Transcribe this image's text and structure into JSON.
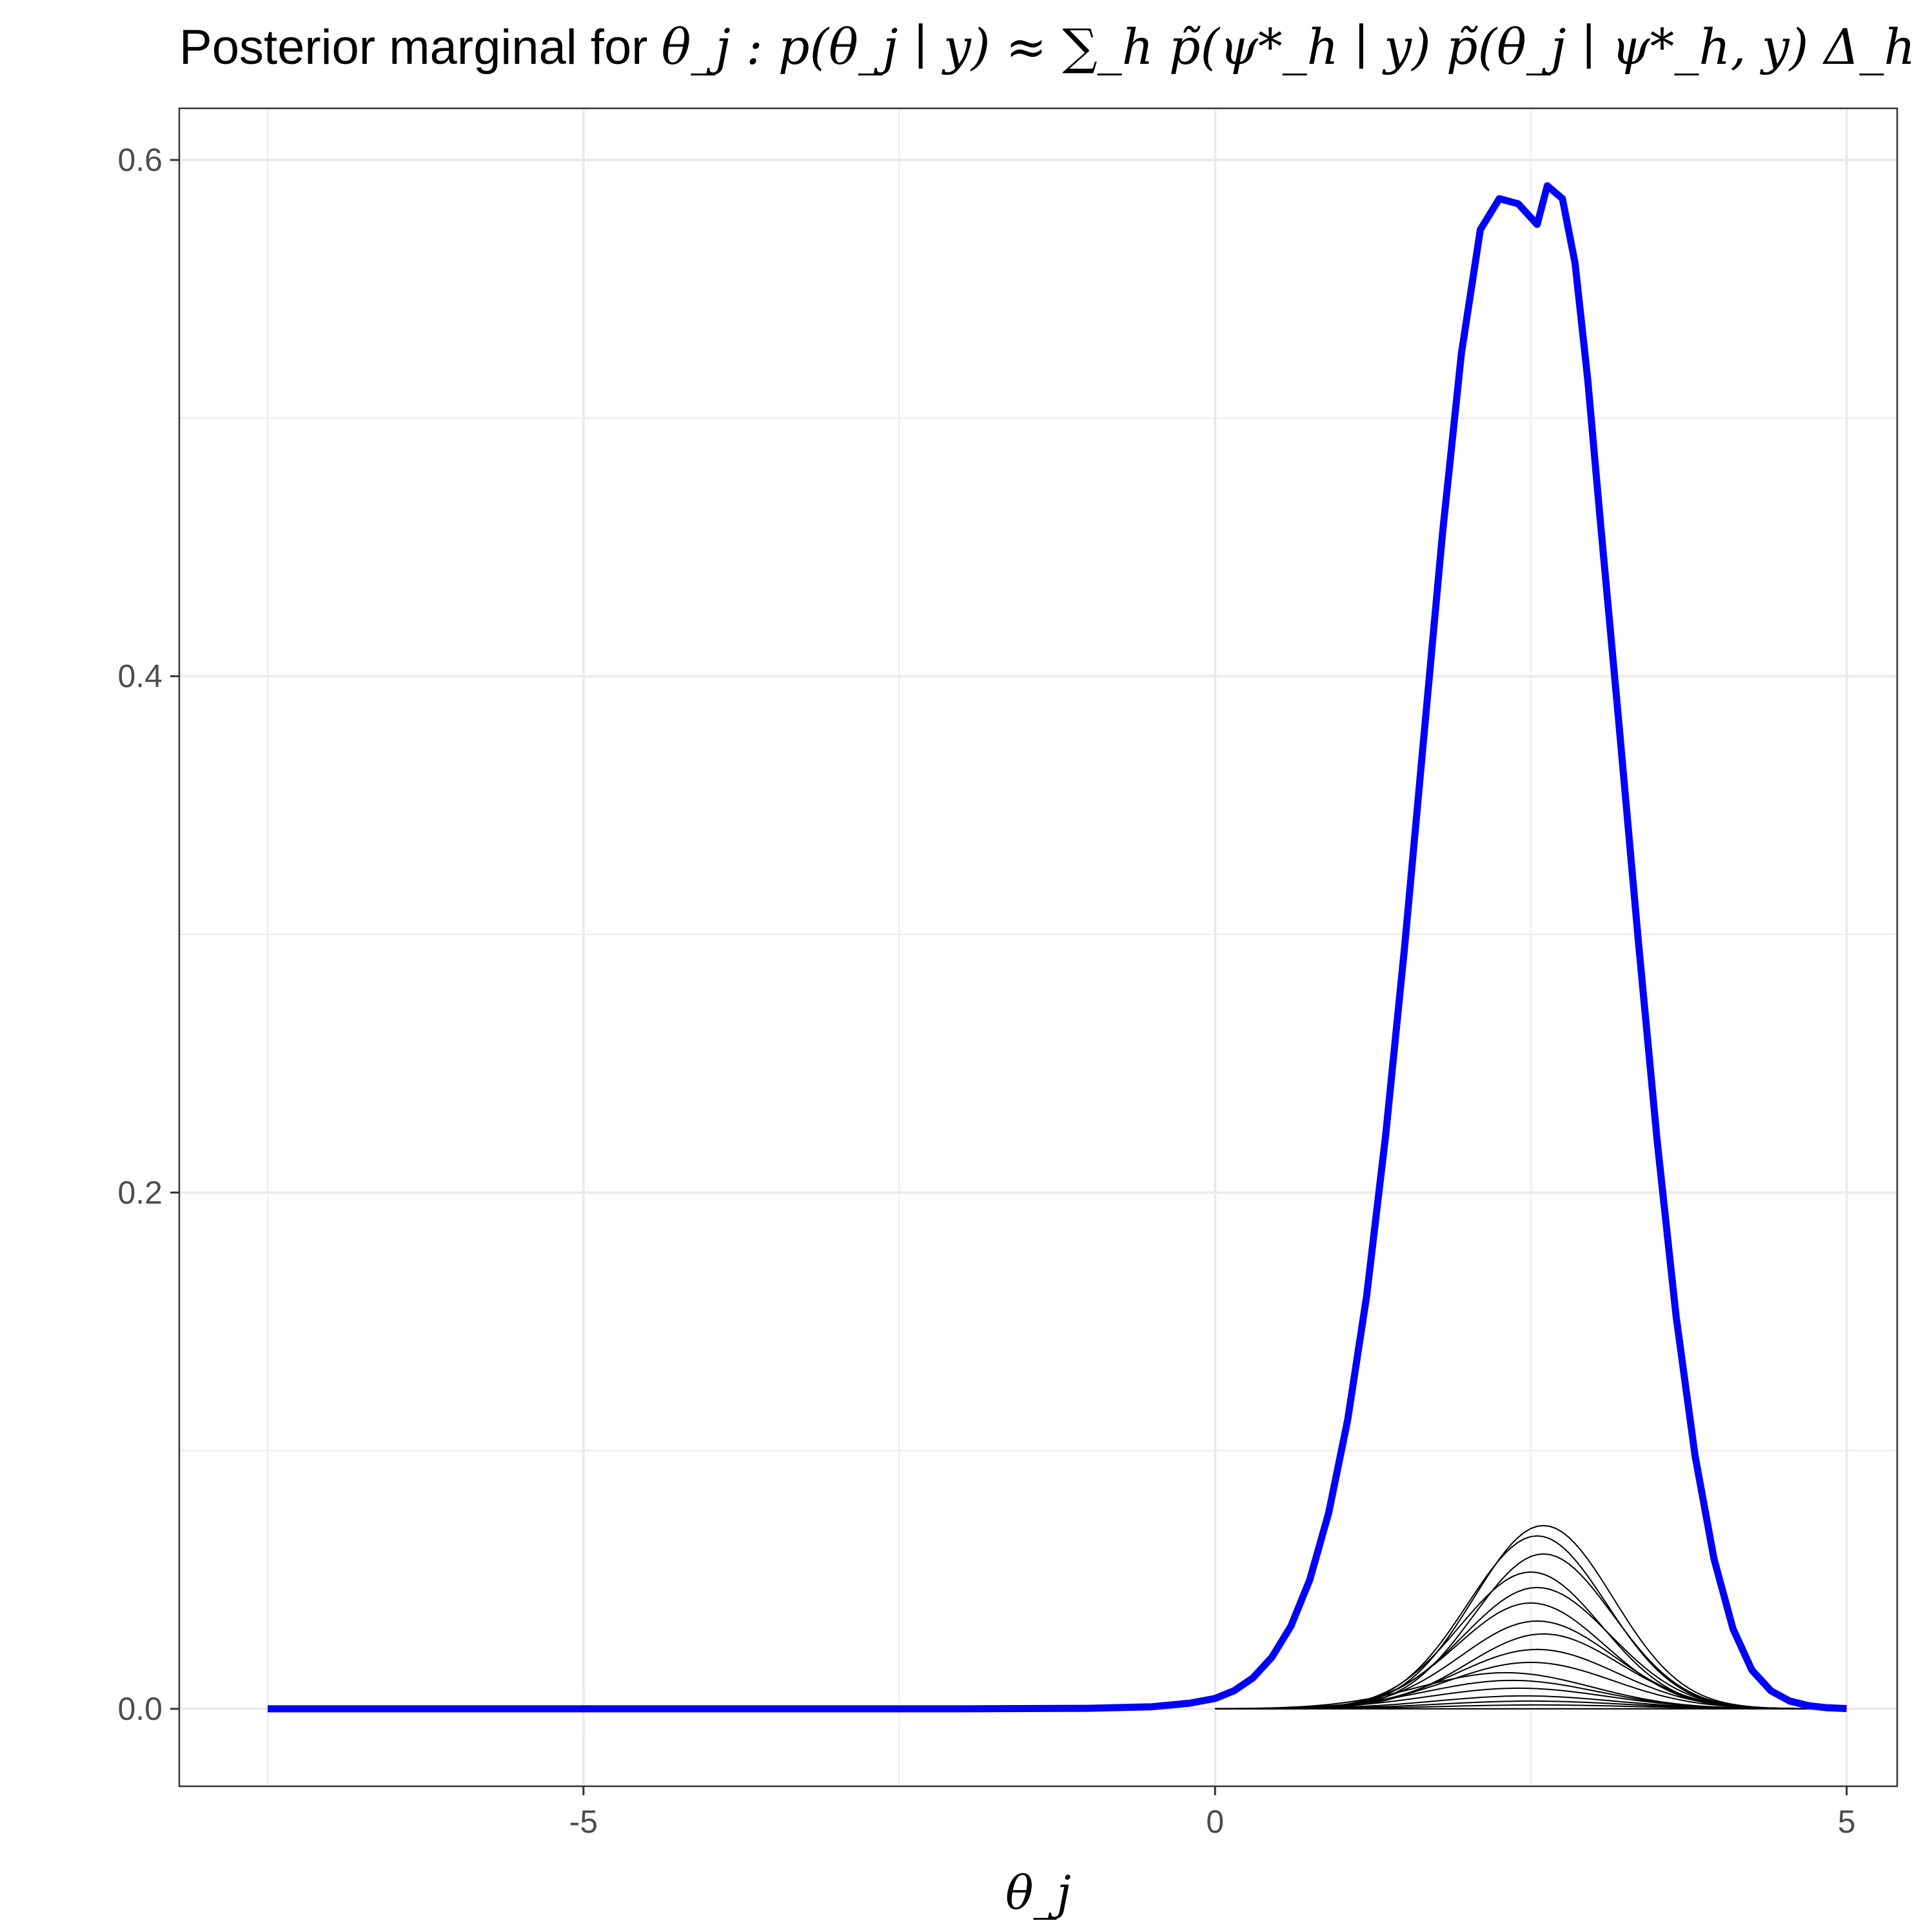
{
  "chart_data": {
    "type": "line",
    "title_prefix": "Posterior marginal for ",
    "title_math": "θ_j : p(θ_j ∣ y) ≈ ∑_h p̃(ψ*_h ∣ y) p̃(θ_j ∣ ψ*_h, y) Δ_h",
    "xlabel": "θ_j",
    "ylabel": "",
    "xlim": [
      -8.2,
      5.4
    ],
    "ylim": [
      -0.03,
      0.62
    ],
    "x_ticks": [
      -5,
      0,
      5
    ],
    "x_tick_labels": [
      "-5",
      "0",
      "5"
    ],
    "y_ticks": [
      0.0,
      0.2,
      0.4,
      0.6
    ],
    "y_tick_labels": [
      "0.0",
      "0.2",
      "0.4",
      "0.6"
    ],
    "grid": true,
    "colors": {
      "marginal": "#0000ff",
      "components": "#000000",
      "grid": "#ebebeb",
      "panel_border": "#333333"
    },
    "series": [
      {
        "role": "marginal",
        "x": [
          -7.5,
          -6.0,
          -4.0,
          -2.0,
          -1.0,
          -0.5,
          -0.2,
          0.0,
          0.15,
          0.3,
          0.45,
          0.6,
          0.75,
          0.9,
          1.05,
          1.2,
          1.35,
          1.5,
          1.65,
          1.8,
          1.95,
          2.1,
          2.25,
          2.4,
          2.55,
          2.63,
          2.75,
          2.85,
          2.95,
          3.05,
          3.2,
          3.35,
          3.5,
          3.65,
          3.8,
          3.95,
          4.1,
          4.25,
          4.4,
          4.55,
          4.7,
          4.85,
          5.0
        ],
        "y": [
          0.0,
          0.0,
          0.0,
          0.0,
          0.0002,
          0.0008,
          0.0022,
          0.004,
          0.007,
          0.012,
          0.02,
          0.032,
          0.05,
          0.076,
          0.112,
          0.16,
          0.222,
          0.295,
          0.375,
          0.455,
          0.525,
          0.573,
          0.585,
          0.583,
          0.575,
          0.59,
          0.585,
          0.56,
          0.515,
          0.46,
          0.38,
          0.298,
          0.22,
          0.152,
          0.098,
          0.058,
          0.031,
          0.015,
          0.007,
          0.003,
          0.0012,
          0.0004,
          0.0001
        ]
      }
    ],
    "components": {
      "count": 16,
      "x_range": [
        0.0,
        5.0
      ],
      "peaks": [
        0.0015,
        0.003,
        0.005,
        0.008,
        0.011,
        0.014,
        0.018,
        0.023,
        0.029,
        0.034,
        0.041,
        0.047,
        0.053,
        0.06,
        0.067,
        0.071
      ],
      "centers": [
        2.55,
        2.5,
        2.45,
        2.4,
        2.35,
        2.3,
        2.5,
        2.55,
        2.6,
        2.55,
        2.5,
        2.55,
        2.5,
        2.6,
        2.55,
        2.6
      ],
      "sds": [
        0.75,
        0.72,
        0.7,
        0.7,
        0.68,
        0.68,
        0.65,
        0.63,
        0.6,
        0.6,
        0.58,
        0.58,
        0.56,
        0.55,
        0.55,
        0.55
      ]
    }
  }
}
